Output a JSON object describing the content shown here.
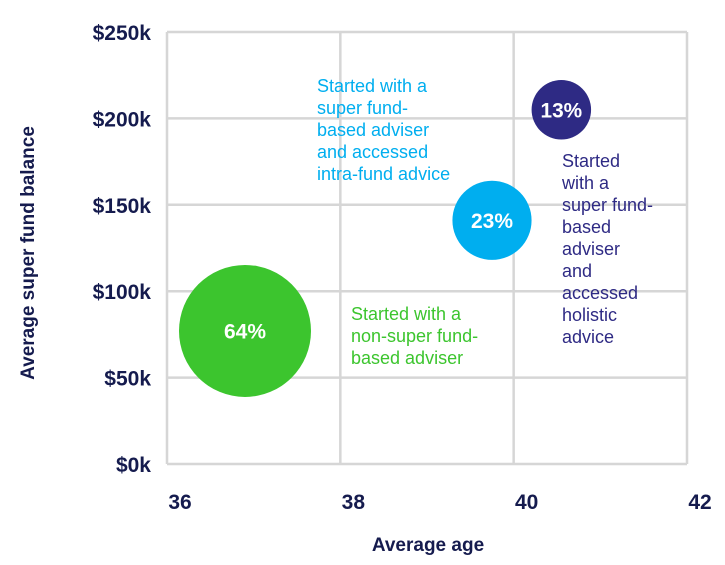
{
  "chart_data": {
    "type": "scatter",
    "xlabel": "Average age",
    "ylabel": "Average super fund balance",
    "xlim": [
      36,
      42
    ],
    "ylim": [
      0,
      250000
    ],
    "x_ticks": [
      36,
      38,
      40,
      42
    ],
    "x_tick_labels": [
      "36",
      "38",
      "40",
      "42"
    ],
    "y_ticks": [
      0,
      50000,
      100000,
      150000,
      200000,
      250000
    ],
    "y_tick_labels": [
      "$0k",
      "$50k",
      "$100k",
      "$150k",
      "$200k",
      "$250k"
    ],
    "grid": true,
    "series": [
      {
        "x": 36.9,
        "y": 77000,
        "share_pct": 64,
        "label": "64%",
        "color": "#3cc52e",
        "annotation": [
          "Started with a",
          "non-super fund-",
          "based adviser"
        ]
      },
      {
        "x": 39.75,
        "y": 141000,
        "share_pct": 23,
        "label": "23%",
        "color": "#00aeef",
        "annotation": [
          "Started with a",
          "super fund-",
          "based adviser",
          "and accessed",
          "intra-fund advice"
        ]
      },
      {
        "x": 40.55,
        "y": 205000,
        "share_pct": 13,
        "label": "13%",
        "color": "#2e2a84",
        "annotation": [
          "Started",
          "with a",
          "super fund-",
          "based",
          "adviser",
          "and",
          "accessed",
          "holistic",
          "advice"
        ]
      }
    ]
  }
}
